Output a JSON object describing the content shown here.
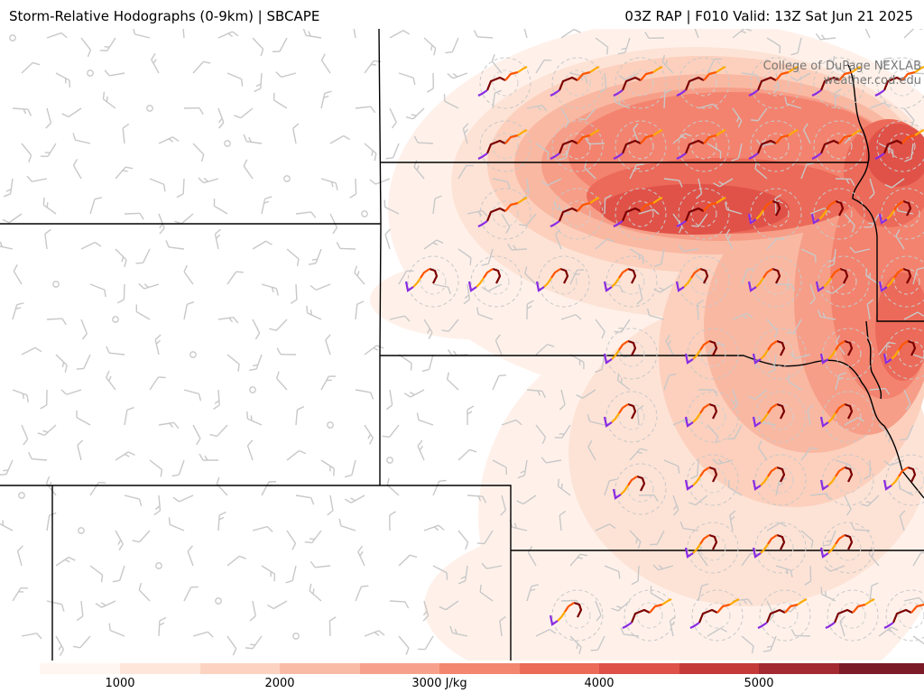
{
  "header": {
    "title_left": "Storm-Relative Hodographs (0-9km) | SBCAPE",
    "title_right": "03Z RAP | F010 Valid: 13Z Sat Jun 21 2025"
  },
  "credit": {
    "line1": "College of DuPage NEXLAB",
    "line2": "weather.cod.edu"
  },
  "colors": {
    "cape_scale": [
      "#fff1ea",
      "#fde3d6",
      "#fcd0bd",
      "#f9b8a2",
      "#f69e88",
      "#f3836f",
      "#ec6a59",
      "#e05248",
      "#cb3c3a",
      "#b22c30",
      "#8e1d25"
    ],
    "hodo_0_3km": "#7a0000",
    "hodo_3_6km": "#ff5500",
    "hodo_6_8km": "#ffaa00",
    "hodo_8_9km": "#8a2be2",
    "state_border": "#000000",
    "wind_barb": "#c8c8c8"
  },
  "colorbar": {
    "unit": "J/kg",
    "ticks": [
      "1000",
      "2000",
      "3000 J/kg",
      "4000",
      "5000"
    ]
  },
  "icons": {
    "wind_barb": "wind-barb-icon",
    "hodograph": "hodograph-icon",
    "calm_wind": "calm-circle-icon"
  }
}
